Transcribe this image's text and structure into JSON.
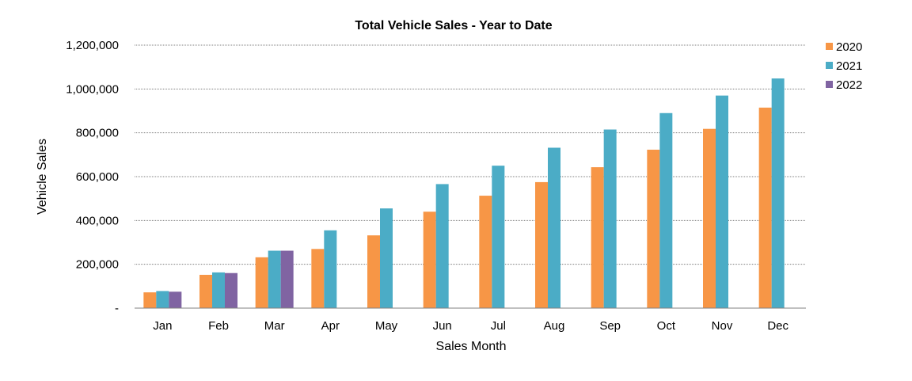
{
  "chart_data": {
    "type": "bar",
    "title": "Total Vehicle Sales - Year to Date",
    "xlabel": "Sales Month",
    "ylabel": "Vehicle Sales",
    "categories": [
      "Jan",
      "Feb",
      "Mar",
      "Apr",
      "May",
      "Jun",
      "Jul",
      "Aug",
      "Sep",
      "Oct",
      "Nov",
      "Dec"
    ],
    "series": [
      {
        "name": "2020",
        "color": "#F79646",
        "values": [
          72000,
          152000,
          232000,
          270000,
          332000,
          440000,
          513000,
          575000,
          643000,
          723000,
          818000,
          915000
        ]
      },
      {
        "name": "2021",
        "color": "#4BACC6",
        "values": [
          78000,
          163000,
          262000,
          355000,
          455000,
          566000,
          650000,
          732000,
          815000,
          890000,
          970000,
          1048000
        ]
      },
      {
        "name": "2022",
        "color": "#8064A2",
        "values": [
          75000,
          160000,
          262000,
          null,
          null,
          null,
          null,
          null,
          null,
          null,
          null,
          null
        ]
      }
    ],
    "ylim": [
      0,
      1200000
    ],
    "yticks": [
      0,
      200000,
      400000,
      600000,
      800000,
      1000000,
      1200000
    ],
    "ytick_labels": [
      "-",
      "200,000",
      "400,000",
      "600,000",
      "800,000",
      "1,000,000",
      "1,200,000"
    ],
    "grid": true,
    "legend_position": "top-right"
  }
}
